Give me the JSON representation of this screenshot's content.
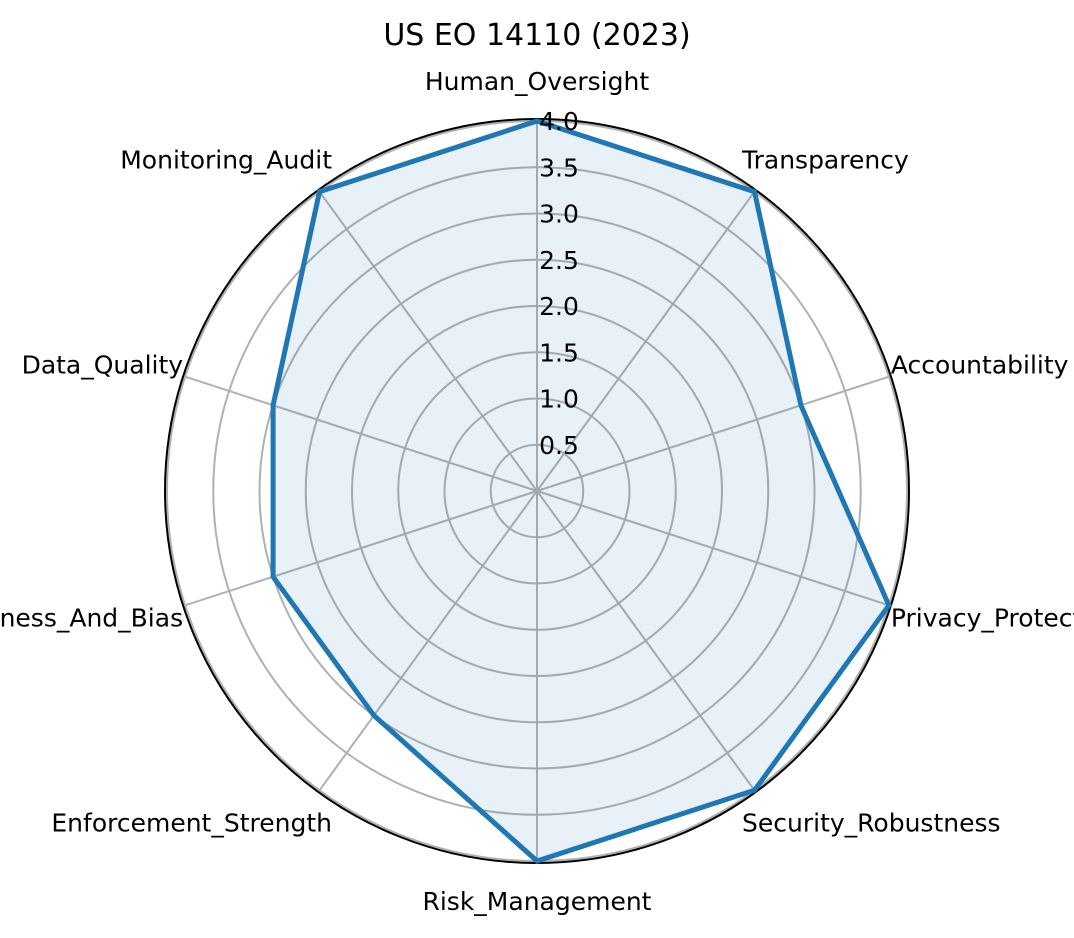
{
  "chart_data": {
    "type": "radar",
    "title": "US EO 14110 (2023)",
    "categories": [
      "Human_Oversight",
      "Transparency",
      "Accountability",
      "Privacy_Protection",
      "Security_Robustness",
      "Risk_Management",
      "Enforcement_Strength",
      "Fairness_And_Bias",
      "Data_Quality",
      "Monitoring_Audit"
    ],
    "series": [
      {
        "values": [
          4.0,
          4.0,
          3.0,
          4.0,
          4.0,
          4.0,
          3.0,
          3.0,
          3.0,
          4.0
        ]
      }
    ],
    "r_ticks": [
      "0.5",
      "1.0",
      "1.5",
      "2.0",
      "2.5",
      "3.0",
      "3.5",
      "4.0"
    ],
    "rlim": [
      0,
      4.0
    ],
    "grid": true,
    "colors": {
      "line": "#1f77b4",
      "fill": "#1f77b4",
      "grid": "#b0b0b0",
      "frame": "#000000"
    }
  }
}
